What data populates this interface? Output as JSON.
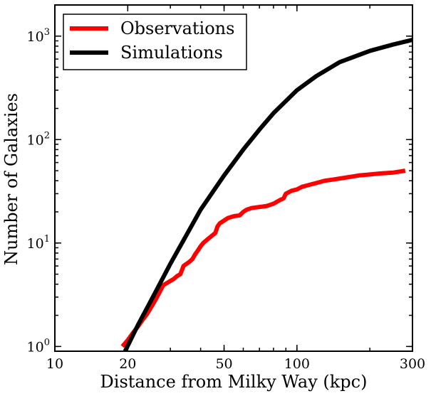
{
  "chart_data": {
    "type": "line",
    "xlabel": "Distance from Milky Way (kpc)",
    "ylabel": "Number of Galaxies",
    "xscale": "log",
    "yscale": "log",
    "xlim": [
      10,
      300
    ],
    "ylim": [
      0.9,
      2000
    ],
    "x_ticks": [
      {
        "value": 10,
        "label": "10"
      },
      {
        "value": 20,
        "label": "20"
      },
      {
        "value": 50,
        "label": "50"
      },
      {
        "value": 100,
        "label": "100"
      },
      {
        "value": 300,
        "label": "300"
      }
    ],
    "y_ticks": [
      {
        "value": 1,
        "base": "10",
        "exp": "0"
      },
      {
        "value": 10,
        "base": "10",
        "exp": "1"
      },
      {
        "value": 100,
        "base": "10",
        "exp": "2"
      },
      {
        "value": 1000,
        "base": "10",
        "exp": "3"
      }
    ],
    "legend_position": "top-left",
    "grid": false,
    "series": [
      {
        "name": "Observations",
        "color": "#ff0000",
        "x": [
          19,
          20,
          21,
          22,
          23,
          24,
          25,
          26,
          27,
          28,
          29,
          30,
          31,
          32,
          33,
          34,
          35,
          36,
          37,
          38,
          39,
          40,
          41,
          42,
          43,
          44,
          45,
          46,
          47,
          48,
          50,
          52,
          55,
          58,
          60,
          62,
          65,
          70,
          75,
          80,
          85,
          88,
          90,
          95,
          100,
          105,
          110,
          115,
          120,
          130,
          140,
          150,
          160,
          170,
          180,
          200,
          220,
          250,
          280
        ],
        "y": [
          1.0,
          1.15,
          1.35,
          1.55,
          1.8,
          2.05,
          2.4,
          2.8,
          3.3,
          3.9,
          4.1,
          4.3,
          4.5,
          4.8,
          5.0,
          6.0,
          6.3,
          6.6,
          7.0,
          7.8,
          8.5,
          9.3,
          10.0,
          10.5,
          11.0,
          11.5,
          12.0,
          12.5,
          14.5,
          15.5,
          16.5,
          17.5,
          18.2,
          18.5,
          20.0,
          21.0,
          21.8,
          22.3,
          22.8,
          24.0,
          26.0,
          27.0,
          30.0,
          32.0,
          33.0,
          35.0,
          36.0,
          37.0,
          38.0,
          40.0,
          41.0,
          42.0,
          43.0,
          44.0,
          45.0,
          46.0,
          47.0,
          48.0,
          50.0
        ]
      },
      {
        "name": "Simulations",
        "color": "#000000",
        "x": [
          19.5,
          22,
          25,
          30,
          35,
          40,
          50,
          60,
          70,
          80,
          100,
          120,
          150,
          200,
          250,
          300
        ],
        "y": [
          0.9,
          1.6,
          2.8,
          6.3,
          12,
          21,
          45,
          80,
          125,
          180,
          300,
          410,
          560,
          720,
          830,
          920
        ]
      }
    ]
  }
}
